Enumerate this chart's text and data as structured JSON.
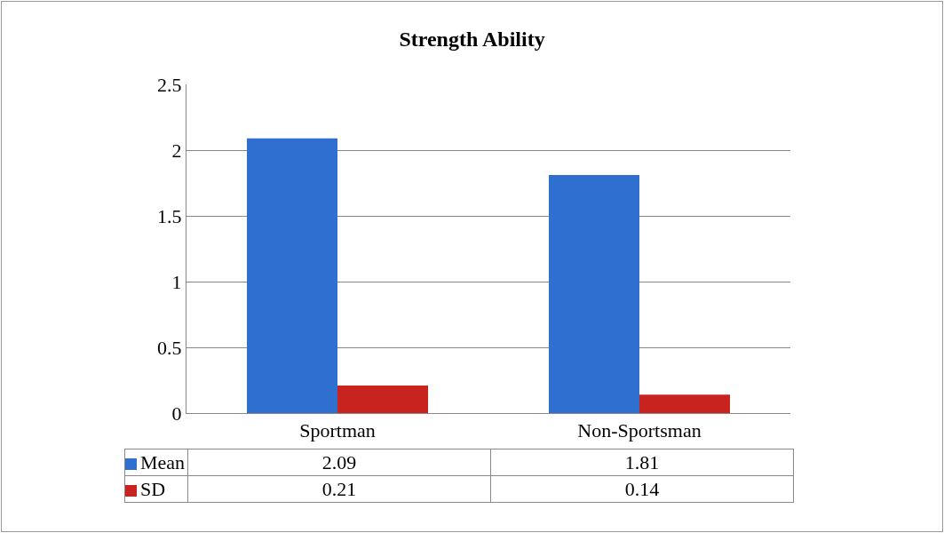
{
  "chart_data": {
    "type": "bar",
    "title": "Strength Ability",
    "categories": [
      "Sportman",
      "Non-Sportsman"
    ],
    "series": [
      {
        "name": "Mean",
        "color": "#2f6fd0",
        "values": [
          2.09,
          1.81
        ]
      },
      {
        "name": "SD",
        "color": "#c8231f",
        "values": [
          0.21,
          0.14
        ]
      }
    ],
    "ylim": [
      0,
      2.5
    ],
    "yticks": [
      0,
      0.5,
      1,
      1.5,
      2,
      2.5
    ],
    "grid": "y",
    "legend": "bottom",
    "data_labels": true
  }
}
